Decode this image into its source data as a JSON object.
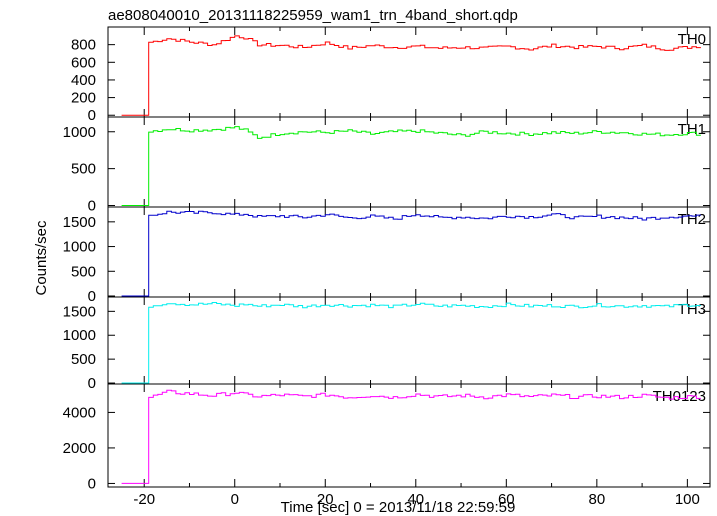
{
  "chart_data": {
    "type": "line",
    "step": true,
    "title": "ae808040010_20131118225959_wam1_trn_4band_short.qdp",
    "xlabel": "Time [sec] 0 = 2013/11/18 22:59:59",
    "ylabel": "Counts/sec",
    "xlim": [
      -28,
      105
    ],
    "xticks": [
      -20,
      0,
      20,
      40,
      60,
      80,
      100
    ],
    "grid": false,
    "legend": "none",
    "panels": [
      {
        "name": "TH0",
        "color": "#ff0000",
        "ylim": [
          -20,
          1000
        ],
        "yticks": [
          0,
          200,
          400,
          600,
          800
        ],
        "baseline": 0,
        "level": 790,
        "jump_to": 820,
        "x": [
          -25,
          -20,
          -19.6,
          -15,
          -10,
          -5,
          0,
          2,
          5,
          10,
          15,
          20,
          25,
          30,
          35,
          40,
          45,
          50,
          55,
          60,
          65,
          70,
          75,
          80,
          85,
          90,
          95,
          100,
          103
        ],
        "y": [
          0,
          0,
          820,
          870,
          830,
          800,
          900,
          880,
          800,
          790,
          770,
          820,
          760,
          790,
          770,
          780,
          760,
          770,
          760,
          780,
          750,
          790,
          770,
          780,
          760,
          790,
          750,
          770,
          790
        ]
      },
      {
        "name": "TH1",
        "color": "#00ee00",
        "ylim": [
          -20,
          1200
        ],
        "yticks": [
          0,
          500,
          1000
        ],
        "baseline": 0,
        "level": 1010,
        "jump_to": 1000,
        "x": [
          -25,
          -20,
          -19.6,
          -15,
          -10,
          -5,
          0,
          2,
          5,
          10,
          15,
          20,
          25,
          30,
          35,
          40,
          45,
          50,
          55,
          60,
          65,
          70,
          75,
          80,
          85,
          90,
          95,
          100,
          103
        ],
        "y": [
          0,
          0,
          1000,
          1040,
          1020,
          1030,
          1060,
          1020,
          920,
          980,
          1000,
          990,
          1010,
          970,
          1000,
          1010,
          980,
          950,
          1000,
          980,
          970,
          990,
          980,
          1000,
          990,
          970,
          960,
          980,
          970
        ]
      },
      {
        "name": "TH2",
        "color": "#0000cc",
        "ylim": [
          -20,
          1800
        ],
        "yticks": [
          0,
          500,
          1000,
          1500
        ],
        "baseline": 0,
        "level": 1620,
        "jump_to": 1620,
        "x": [
          -25,
          -20,
          -19.6,
          -15,
          -10,
          -5,
          0,
          2,
          5,
          10,
          15,
          20,
          25,
          30,
          35,
          40,
          45,
          50,
          55,
          60,
          65,
          70,
          75,
          80,
          85,
          90,
          95,
          100,
          103
        ],
        "y": [
          0,
          0,
          1620,
          1700,
          1680,
          1690,
          1640,
          1660,
          1600,
          1620,
          1590,
          1650,
          1580,
          1610,
          1560,
          1660,
          1580,
          1600,
          1570,
          1620,
          1600,
          1650,
          1580,
          1610,
          1590,
          1560,
          1600,
          1620,
          1600
        ]
      },
      {
        "name": "TH3",
        "color": "#00eeee",
        "ylim": [
          -20,
          1800
        ],
        "yticks": [
          0,
          500,
          1000,
          1500
        ],
        "baseline": 0,
        "level": 1620,
        "jump_to": 1600,
        "x": [
          -25,
          -20,
          -19.6,
          -15,
          -10,
          -5,
          0,
          2,
          5,
          10,
          15,
          20,
          25,
          30,
          35,
          40,
          45,
          50,
          55,
          60,
          65,
          70,
          75,
          80,
          85,
          90,
          95,
          100,
          103
        ],
        "y": [
          0,
          0,
          1600,
          1680,
          1640,
          1660,
          1620,
          1650,
          1610,
          1640,
          1600,
          1640,
          1620,
          1630,
          1600,
          1650,
          1610,
          1620,
          1600,
          1640,
          1610,
          1620,
          1600,
          1630,
          1610,
          1620,
          1600,
          1640,
          1630
        ]
      },
      {
        "name": "TH0123",
        "color": "#ff00ff",
        "ylim": [
          -200,
          5600
        ],
        "yticks": [
          0,
          2000,
          4000
        ],
        "baseline": 0,
        "level": 4950,
        "jump_to": 4800,
        "x": [
          -25,
          -20,
          -19.6,
          -15,
          -10,
          -5,
          0,
          2,
          5,
          10,
          15,
          20,
          25,
          30,
          35,
          40,
          45,
          50,
          55,
          60,
          65,
          70,
          75,
          80,
          85,
          90,
          95,
          100,
          103
        ],
        "y": [
          0,
          0,
          4800,
          5150,
          5050,
          4950,
          5120,
          5000,
          4900,
          4980,
          4900,
          5000,
          4850,
          4960,
          4850,
          5020,
          4880,
          4950,
          4860,
          4980,
          4880,
          4960,
          4870,
          4920,
          4860,
          4950,
          4820,
          4880,
          4900
        ]
      }
    ]
  }
}
